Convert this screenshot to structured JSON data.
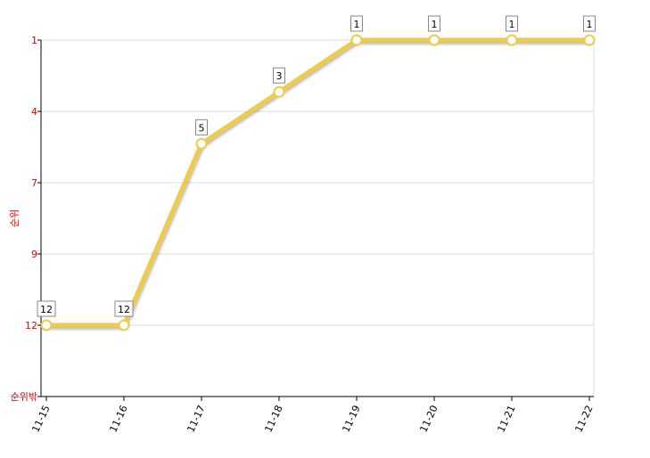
{
  "chart_data": {
    "type": "line",
    "y_label": "순위",
    "categories": [
      "11-15",
      "11-16",
      "11-17",
      "11-18",
      "11-19",
      "11-20",
      "11-21",
      "11-22"
    ],
    "series": [
      {
        "name": "순위",
        "color": "#eecb48",
        "values": [
          12,
          12,
          5,
          3,
          1,
          1,
          1,
          1
        ]
      }
    ],
    "ylim": [
      1,
      14.75
    ],
    "y_inverted": true,
    "yticks": [
      1,
      {
        "value": 3.75,
        "label": "4"
      },
      {
        "value": 6.5,
        "label": "7"
      },
      {
        "value": 9.25,
        "label": "9"
      },
      12,
      {
        "value": 14.75,
        "label": "순위밖"
      }
    ],
    "grid": true,
    "tick_color": "#e00000"
  }
}
